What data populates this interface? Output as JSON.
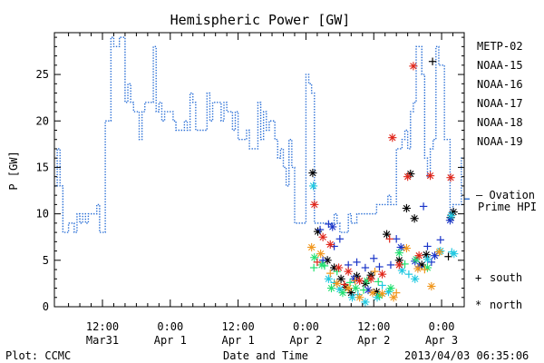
{
  "chart_data": {
    "type": "scatter",
    "title": "Hemispheric Power [GW]",
    "ylabel": "P [GW]",
    "xlabel": "Date and Time",
    "ylim": [
      0,
      29.5
    ],
    "y_ticks": [
      0,
      5,
      10,
      15,
      20,
      25
    ],
    "x_units": "hours since 2013-03-31 00:00 UT",
    "xlim": [
      3.5,
      76
    ],
    "x_ticks": [
      {
        "x": 12,
        "label": [
          "12:00",
          "Mar31"
        ]
      },
      {
        "x": 24,
        "label": [
          "0:00",
          "Apr 1"
        ]
      },
      {
        "x": 36,
        "label": [
          "12:00",
          "Apr 1"
        ]
      },
      {
        "x": 48,
        "label": [
          "0:00",
          "Apr 2"
        ]
      },
      {
        "x": 60,
        "label": [
          "12:00",
          "Apr 2"
        ]
      },
      {
        "x": 72,
        "label": [
          "0:00",
          "Apr 3"
        ]
      }
    ],
    "footer_left": "Plot: CCMC",
    "footer_right": "2013/04/03 06:35:06",
    "legend": [
      {
        "name": "METP-02",
        "color": "#000000"
      },
      {
        "name": "NOAA-15",
        "color": "#1a35c8"
      },
      {
        "name": "NOAA-16",
        "color": "#1fc8e0"
      },
      {
        "name": "NOAA-17",
        "color": "#22e070"
      },
      {
        "name": "NOAA-18",
        "color": "#f0961c"
      },
      {
        "name": "NOAA-19",
        "color": "#e02418"
      }
    ],
    "ovation_label": [
      "– Ovation",
      "Prime HPI"
    ],
    "ovation_color": "#2a6fd6",
    "symbol_key": [
      {
        "symbol": "+",
        "label": "south"
      },
      {
        "symbol": "*",
        "label": "north"
      }
    ],
    "ovation": {
      "name": "Ovation Prime HPI",
      "x": [
        3.5,
        4.0,
        4.5,
        5.0,
        5.5,
        6.0,
        7.0,
        7.5,
        8.0,
        8.5,
        9.0,
        9.5,
        10.0,
        10.5,
        11.0,
        11.5,
        12.5,
        13.5,
        14.0,
        15.0,
        15.5,
        16.0,
        16.5,
        17.0,
        17.5,
        18.5,
        19.0,
        19.5,
        20.0,
        21.0,
        21.5,
        22.0,
        22.5,
        23.0,
        24.5,
        25.0,
        25.5,
        26.0,
        26.5,
        27.0,
        27.5,
        28.0,
        28.5,
        30.5,
        31.0,
        31.5,
        33.0,
        33.5,
        34.0,
        35.0,
        35.5,
        36.0,
        37.0,
        37.5,
        38.0,
        39.0,
        39.5,
        40.0,
        40.5,
        41.0,
        41.5,
        42.5,
        43.0,
        43.5,
        44.0,
        44.5,
        45.0,
        45.5,
        46.0,
        48.0,
        48.5,
        49.0,
        49.5,
        50.0,
        51.5,
        52.0,
        53.0,
        53.5,
        54.0,
        55.5,
        56.0,
        57.0,
        57.5,
        58.0,
        58.5,
        60.0,
        60.5,
        62.0,
        62.5,
        63.0,
        64.0,
        65.0,
        65.5,
        66.0,
        66.5,
        67.0,
        67.5,
        68.5,
        69.0,
        69.5,
        70.0,
        70.5,
        71.0,
        71.5,
        72.5,
        73.0,
        73.5,
        74.0,
        74.5,
        75.0,
        75.5,
        76.0
      ],
      "y": [
        13,
        17,
        13,
        8,
        8,
        9,
        8,
        10,
        9,
        10,
        9,
        10,
        10,
        10,
        11,
        8,
        20,
        29,
        28,
        29,
        29,
        22,
        24,
        22,
        21,
        18,
        21,
        22,
        22,
        28,
        21,
        22,
        20,
        21,
        20,
        19,
        19,
        19,
        20,
        19,
        23,
        22,
        19,
        23,
        20,
        22,
        20,
        22,
        21,
        19,
        21,
        18,
        18,
        19,
        17,
        17,
        22,
        18,
        21,
        19,
        20,
        18,
        16,
        17,
        15,
        13,
        18,
        15,
        9,
        25,
        24,
        23,
        9,
        9,
        9,
        9,
        10,
        9,
        8,
        10,
        9,
        10,
        10,
        10,
        10,
        10,
        11,
        11,
        12,
        11,
        17,
        18,
        19,
        17,
        21,
        22,
        28,
        25,
        16,
        14,
        17,
        18,
        28,
        26,
        18,
        18,
        10,
        11,
        11,
        11,
        16,
        16
      ],
      "line_pattern": "dotted"
    },
    "series": [
      {
        "name": "METP-02",
        "color": "#000000",
        "points": [
          {
            "x": 49.2,
            "y": 14.4,
            "hem": "north"
          },
          {
            "x": 50.1,
            "y": 8.1,
            "hem": "north"
          },
          {
            "x": 51.8,
            "y": 5.0,
            "hem": "north"
          },
          {
            "x": 53.0,
            "y": 4.2,
            "hem": "north"
          },
          {
            "x": 54.2,
            "y": 3.0,
            "hem": "north"
          },
          {
            "x": 55.0,
            "y": 2.1,
            "hem": "north"
          },
          {
            "x": 56.0,
            "y": 1.5,
            "hem": "north"
          },
          {
            "x": 57.0,
            "y": 3.3,
            "hem": "north"
          },
          {
            "x": 58.5,
            "y": 2.5,
            "hem": "north"
          },
          {
            "x": 59.5,
            "y": 3.4,
            "hem": "north"
          },
          {
            "x": 60.5,
            "y": 1.6,
            "hem": "north"
          },
          {
            "x": 62.3,
            "y": 7.8,
            "hem": "north"
          },
          {
            "x": 64.5,
            "y": 5.0,
            "hem": "north"
          },
          {
            "x": 65.8,
            "y": 10.6,
            "hem": "north"
          },
          {
            "x": 66.5,
            "y": 14.3,
            "hem": "north"
          },
          {
            "x": 67.2,
            "y": 9.5,
            "hem": "north"
          },
          {
            "x": 68.5,
            "y": 4.5,
            "hem": "north"
          },
          {
            "x": 69.3,
            "y": 5.6,
            "hem": "north"
          },
          {
            "x": 73.6,
            "y": 9.6,
            "hem": "north"
          },
          {
            "x": 74.1,
            "y": 10.2,
            "hem": "north"
          },
          {
            "x": 70.4,
            "y": 26.4,
            "hem": "south"
          },
          {
            "x": 73.2,
            "y": 5.4,
            "hem": "south"
          }
        ]
      },
      {
        "name": "NOAA-15",
        "color": "#1a35c8",
        "points": [
          {
            "x": 50.5,
            "y": 8.3,
            "hem": "south"
          },
          {
            "x": 52.0,
            "y": 8.9,
            "hem": "south"
          },
          {
            "x": 51.0,
            "y": 5.0,
            "hem": "south"
          },
          {
            "x": 53.0,
            "y": 6.5,
            "hem": "south"
          },
          {
            "x": 54.0,
            "y": 7.3,
            "hem": "south"
          },
          {
            "x": 55.5,
            "y": 4.5,
            "hem": "south"
          },
          {
            "x": 57.0,
            "y": 4.8,
            "hem": "south"
          },
          {
            "x": 58.5,
            "y": 4.2,
            "hem": "south"
          },
          {
            "x": 60.0,
            "y": 5.2,
            "hem": "south"
          },
          {
            "x": 61.0,
            "y": 4.3,
            "hem": "south"
          },
          {
            "x": 63.0,
            "y": 4.5,
            "hem": "south"
          },
          {
            "x": 64.0,
            "y": 7.3,
            "hem": "south"
          },
          {
            "x": 68.0,
            "y": 4.3,
            "hem": "south"
          },
          {
            "x": 68.8,
            "y": 10.8,
            "hem": "south"
          },
          {
            "x": 69.5,
            "y": 6.5,
            "hem": "south"
          },
          {
            "x": 70.2,
            "y": 4.8,
            "hem": "south"
          },
          {
            "x": 71.8,
            "y": 7.2,
            "hem": "south"
          },
          {
            "x": 73.5,
            "y": 9.3,
            "hem": "north"
          },
          {
            "x": 52.7,
            "y": 8.6,
            "hem": "north"
          },
          {
            "x": 56.5,
            "y": 3.0,
            "hem": "north"
          },
          {
            "x": 59.0,
            "y": 1.8,
            "hem": "north"
          },
          {
            "x": 64.8,
            "y": 6.4,
            "hem": "north"
          },
          {
            "x": 67.3,
            "y": 4.9,
            "hem": "north"
          },
          {
            "x": 70.8,
            "y": 5.5,
            "hem": "north"
          }
        ]
      },
      {
        "name": "NOAA-16",
        "color": "#1fc8e0",
        "points": [
          {
            "x": 49.3,
            "y": 13.0,
            "hem": "north"
          },
          {
            "x": 52.0,
            "y": 3.0,
            "hem": "north"
          },
          {
            "x": 54.0,
            "y": 1.9,
            "hem": "north"
          },
          {
            "x": 56.2,
            "y": 1.0,
            "hem": "north"
          },
          {
            "x": 58.5,
            "y": 0.5,
            "hem": "north"
          },
          {
            "x": 60.6,
            "y": 1.0,
            "hem": "north"
          },
          {
            "x": 62.6,
            "y": 1.6,
            "hem": "north"
          },
          {
            "x": 65.0,
            "y": 3.9,
            "hem": "north"
          },
          {
            "x": 67.3,
            "y": 3.0,
            "hem": "north"
          },
          {
            "x": 69.5,
            "y": 5.1,
            "hem": "north"
          },
          {
            "x": 71.8,
            "y": 6.0,
            "hem": "north"
          },
          {
            "x": 73.7,
            "y": 9.8,
            "hem": "north"
          },
          {
            "x": 74.2,
            "y": 5.7,
            "hem": "north"
          },
          {
            "x": 53.0,
            "y": 2.6,
            "hem": "south"
          },
          {
            "x": 57.2,
            "y": 1.3,
            "hem": "south"
          },
          {
            "x": 61.5,
            "y": 2.3,
            "hem": "south"
          },
          {
            "x": 66.2,
            "y": 3.5,
            "hem": "south"
          },
          {
            "x": 73.8,
            "y": 5.9,
            "hem": "south"
          }
        ]
      },
      {
        "name": "NOAA-17",
        "color": "#22e070",
        "points": [
          {
            "x": 49.5,
            "y": 5.3,
            "hem": "north"
          },
          {
            "x": 50.8,
            "y": 4.5,
            "hem": "north"
          },
          {
            "x": 52.5,
            "y": 2.0,
            "hem": "north"
          },
          {
            "x": 54.5,
            "y": 1.5,
            "hem": "north"
          },
          {
            "x": 56.8,
            "y": 2.0,
            "hem": "north"
          },
          {
            "x": 58.8,
            "y": 2.8,
            "hem": "north"
          },
          {
            "x": 61.0,
            "y": 1.2,
            "hem": "north"
          },
          {
            "x": 63.0,
            "y": 2.0,
            "hem": "north"
          },
          {
            "x": 64.5,
            "y": 5.8,
            "hem": "north"
          },
          {
            "x": 67.5,
            "y": 5.1,
            "hem": "north"
          },
          {
            "x": 69.5,
            "y": 4.2,
            "hem": "north"
          },
          {
            "x": 49.4,
            "y": 4.2,
            "hem": "south"
          },
          {
            "x": 51.3,
            "y": 4.4,
            "hem": "south"
          },
          {
            "x": 53.5,
            "y": 3.8,
            "hem": "south"
          },
          {
            "x": 55.8,
            "y": 2.6,
            "hem": "south"
          },
          {
            "x": 58.2,
            "y": 1.8,
            "hem": "south"
          },
          {
            "x": 60.8,
            "y": 2.7,
            "hem": "south"
          },
          {
            "x": 65.5,
            "y": 4.6,
            "hem": "south"
          }
        ]
      },
      {
        "name": "NOAA-18",
        "color": "#f0961c",
        "points": [
          {
            "x": 49.0,
            "y": 6.4,
            "hem": "north"
          },
          {
            "x": 50.6,
            "y": 5.7,
            "hem": "north"
          },
          {
            "x": 53.5,
            "y": 2.5,
            "hem": "north"
          },
          {
            "x": 55.5,
            "y": 2.0,
            "hem": "north"
          },
          {
            "x": 57.5,
            "y": 1.0,
            "hem": "north"
          },
          {
            "x": 59.8,
            "y": 1.5,
            "hem": "north"
          },
          {
            "x": 61.5,
            "y": 1.4,
            "hem": "north"
          },
          {
            "x": 63.5,
            "y": 1.0,
            "hem": "north"
          },
          {
            "x": 65.8,
            "y": 6.3,
            "hem": "north"
          },
          {
            "x": 67.8,
            "y": 4.1,
            "hem": "north"
          },
          {
            "x": 70.2,
            "y": 2.2,
            "hem": "north"
          },
          {
            "x": 71.6,
            "y": 5.9,
            "hem": "north"
          },
          {
            "x": 52.3,
            "y": 3.6,
            "hem": "south"
          },
          {
            "x": 56.7,
            "y": 2.8,
            "hem": "south"
          },
          {
            "x": 60.2,
            "y": 3.8,
            "hem": "south"
          },
          {
            "x": 64.0,
            "y": 1.5,
            "hem": "south"
          },
          {
            "x": 69.0,
            "y": 4.0,
            "hem": "south"
          }
        ]
      },
      {
        "name": "NOAA-19",
        "color": "#e02418",
        "points": [
          {
            "x": 49.5,
            "y": 11.0,
            "hem": "north"
          },
          {
            "x": 51.0,
            "y": 7.5,
            "hem": "north"
          },
          {
            "x": 52.3,
            "y": 6.7,
            "hem": "north"
          },
          {
            "x": 53.8,
            "y": 4.2,
            "hem": "north"
          },
          {
            "x": 55.5,
            "y": 3.8,
            "hem": "north"
          },
          {
            "x": 57.5,
            "y": 2.8,
            "hem": "north"
          },
          {
            "x": 59.5,
            "y": 3.0,
            "hem": "north"
          },
          {
            "x": 61.5,
            "y": 3.5,
            "hem": "north"
          },
          {
            "x": 63.3,
            "y": 18.2,
            "hem": "north"
          },
          {
            "x": 64.5,
            "y": 4.5,
            "hem": "north"
          },
          {
            "x": 66.0,
            "y": 14.0,
            "hem": "north"
          },
          {
            "x": 67.0,
            "y": 25.9,
            "hem": "north"
          },
          {
            "x": 68.0,
            "y": 5.5,
            "hem": "north"
          },
          {
            "x": 70.0,
            "y": 14.1,
            "hem": "north"
          },
          {
            "x": 73.6,
            "y": 13.9,
            "hem": "north"
          },
          {
            "x": 50.0,
            "y": 4.8,
            "hem": "south"
          },
          {
            "x": 54.8,
            "y": 2.4,
            "hem": "south"
          },
          {
            "x": 62.8,
            "y": 7.3,
            "hem": "south"
          }
        ]
      }
    ]
  }
}
